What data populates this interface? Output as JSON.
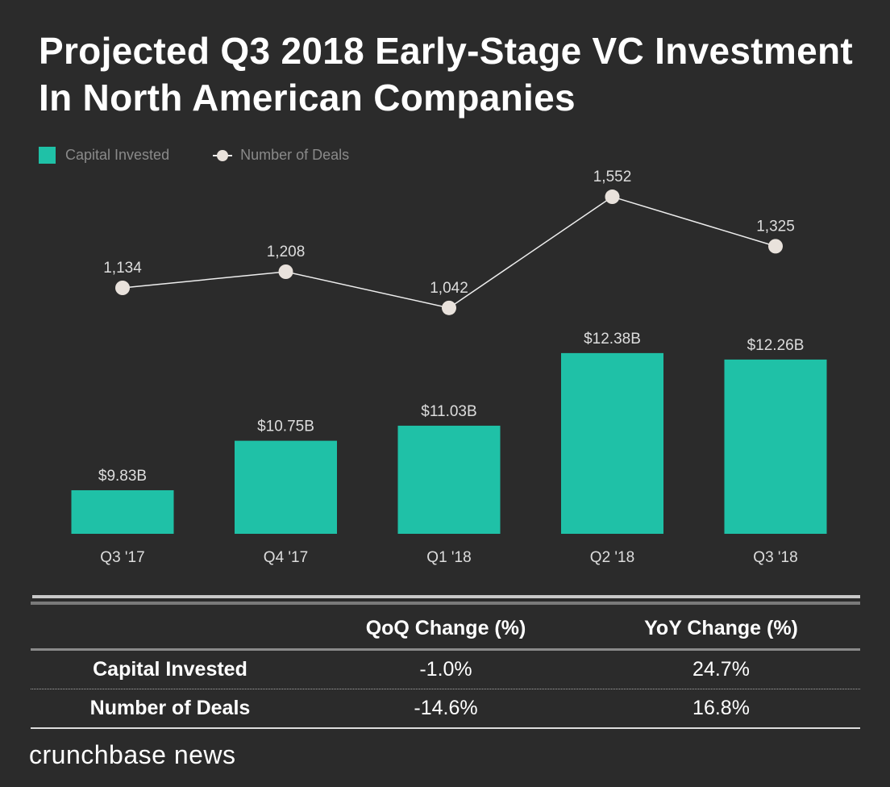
{
  "title": "Projected Q3 2018 Early-Stage VC Investment In North American Companies",
  "colors": {
    "bar": "#1fc1a7",
    "line": "#e9e2dc",
    "background": "#2b2b2b"
  },
  "chart_data": {
    "type": "bar+line",
    "categories": [
      "Q3 '17",
      "Q4 '17",
      "Q1 '18",
      "Q2 '18",
      "Q3 '18"
    ],
    "legend_position": "top-left",
    "grid": false,
    "series": [
      {
        "name": "Capital Invested",
        "type": "bar",
        "values": [
          9.83,
          10.75,
          11.03,
          12.38,
          12.26
        ],
        "labels": [
          "$9.83B",
          "$10.75B",
          "$11.03B",
          "$12.38B",
          "$12.26B"
        ]
      },
      {
        "name": "Number of Deals",
        "type": "line",
        "values": [
          1134,
          1208,
          1042,
          1552,
          1325
        ],
        "labels": [
          "1,134",
          "1,208",
          "1,042",
          "1,552",
          "1,325"
        ]
      }
    ]
  },
  "table": {
    "headers": [
      "",
      "QoQ Change (%)",
      "YoY Change (%)"
    ],
    "rows": [
      [
        "Capital Invested",
        "-1.0%",
        "24.7%"
      ],
      [
        "Number of Deals",
        "-14.6%",
        "16.8%"
      ]
    ]
  },
  "logo": "crunchbase news"
}
